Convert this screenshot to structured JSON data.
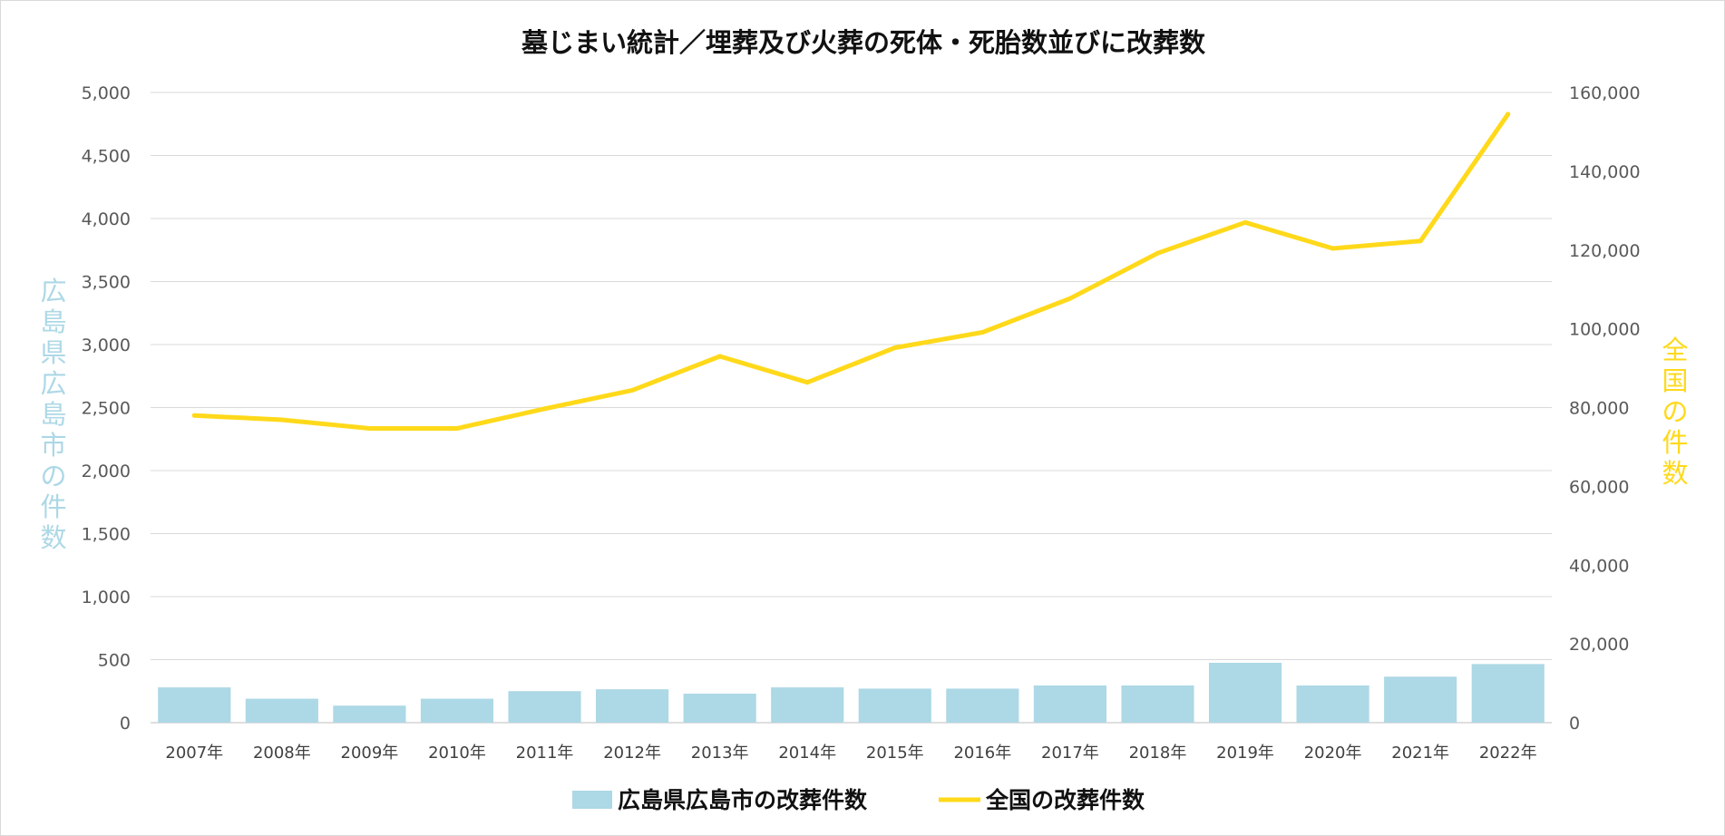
{
  "chart_data": {
    "type": "bar",
    "title": "墓じまい統計／埋葬及び火葬の死体・死胎数並びに改葬数",
    "categories": [
      "2007年",
      "2008年",
      "2009年",
      "2010年",
      "2011年",
      "2012年",
      "2013年",
      "2014年",
      "2015年",
      "2016年",
      "2017年",
      "2018年",
      "2019年",
      "2020年",
      "2021年",
      "2022年"
    ],
    "series": [
      {
        "name": "広島県広島市の改葬件数",
        "type": "bar",
        "axis": "left",
        "color": "#add8e6",
        "values": [
          280,
          190,
          135,
          190,
          250,
          265,
          230,
          280,
          270,
          270,
          295,
          295,
          475,
          295,
          365,
          465
        ]
      },
      {
        "name": "全国の改葬件数",
        "type": "line",
        "axis": "right",
        "color": "#ffd91a",
        "values": [
          78000,
          76900,
          74700,
          74700,
          79700,
          84400,
          93000,
          86400,
          95200,
          99100,
          107700,
          119200,
          127000,
          120400,
          122300,
          154500
        ]
      }
    ],
    "ylabel": "広島県広島市の件数",
    "y2label": "全国の件数",
    "ylim": [
      0,
      5000
    ],
    "y2lim": [
      0,
      160000
    ],
    "yticks": [
      "5,000",
      "4,500",
      "4,000",
      "3,500",
      "3,000",
      "2,500",
      "2,000",
      "1,500",
      "1,000",
      "500",
      "0"
    ],
    "y2ticks": [
      "160,000",
      "140,000",
      "120,000",
      "100,000",
      "80,000",
      "60,000",
      "40,000",
      "20,000",
      "0"
    ],
    "ytick_values": [
      5000,
      4500,
      4000,
      3500,
      3000,
      2500,
      2000,
      1500,
      1000,
      500,
      0
    ],
    "y2tick_values": [
      160000,
      140000,
      120000,
      100000,
      80000,
      60000,
      40000,
      20000,
      0
    ],
    "grid": true,
    "legend": "bottom",
    "ylabel_color": "#add8e6",
    "y2label_color": "#ffd91a"
  }
}
